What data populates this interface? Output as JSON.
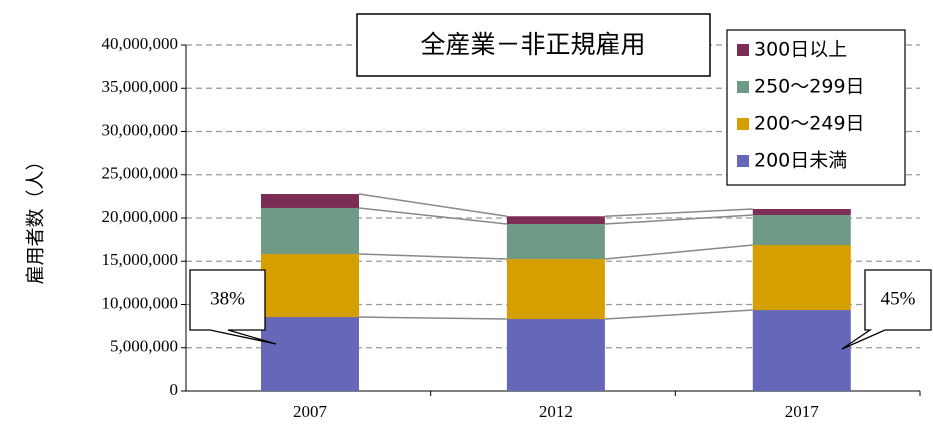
{
  "chart_data": {
    "type": "stacked_bar",
    "title": "全産業－非正規雇用",
    "y_label": "雇用者数（人）",
    "categories": [
      "2007",
      "2012",
      "2017"
    ],
    "series": [
      {
        "name": "200日未満",
        "color": "#6667b8",
        "values": [
          8550000,
          8320000,
          9360000
        ]
      },
      {
        "name": "200～249日",
        "color": "#d59f00",
        "values": [
          7290000,
          6940000,
          7520000
        ]
      },
      {
        "name": "250～299日",
        "color": "#6f9a86",
        "values": [
          5320000,
          4040000,
          3470000
        ]
      },
      {
        "name": "300日以上",
        "color": "#7b2d55",
        "values": [
          1610000,
          900000,
          690000
        ]
      }
    ],
    "ylim": [
      0,
      40000000
    ],
    "yticks": [
      {
        "value": 0,
        "label": "0"
      },
      {
        "value": 5000000,
        "label": "5,000,000"
      },
      {
        "value": 10000000,
        "label": "10,000,000"
      },
      {
        "value": 15000000,
        "label": "15,000,000"
      },
      {
        "value": 20000000,
        "label": "20,000,000"
      },
      {
        "value": 25000000,
        "label": "25,000,000"
      },
      {
        "value": 30000000,
        "label": "30,000,000"
      },
      {
        "value": 35000000,
        "label": "35,000,000"
      },
      {
        "value": 40000000,
        "label": "40,000,000"
      }
    ],
    "grid": true,
    "annotations": [
      "38%",
      "45%"
    ]
  }
}
